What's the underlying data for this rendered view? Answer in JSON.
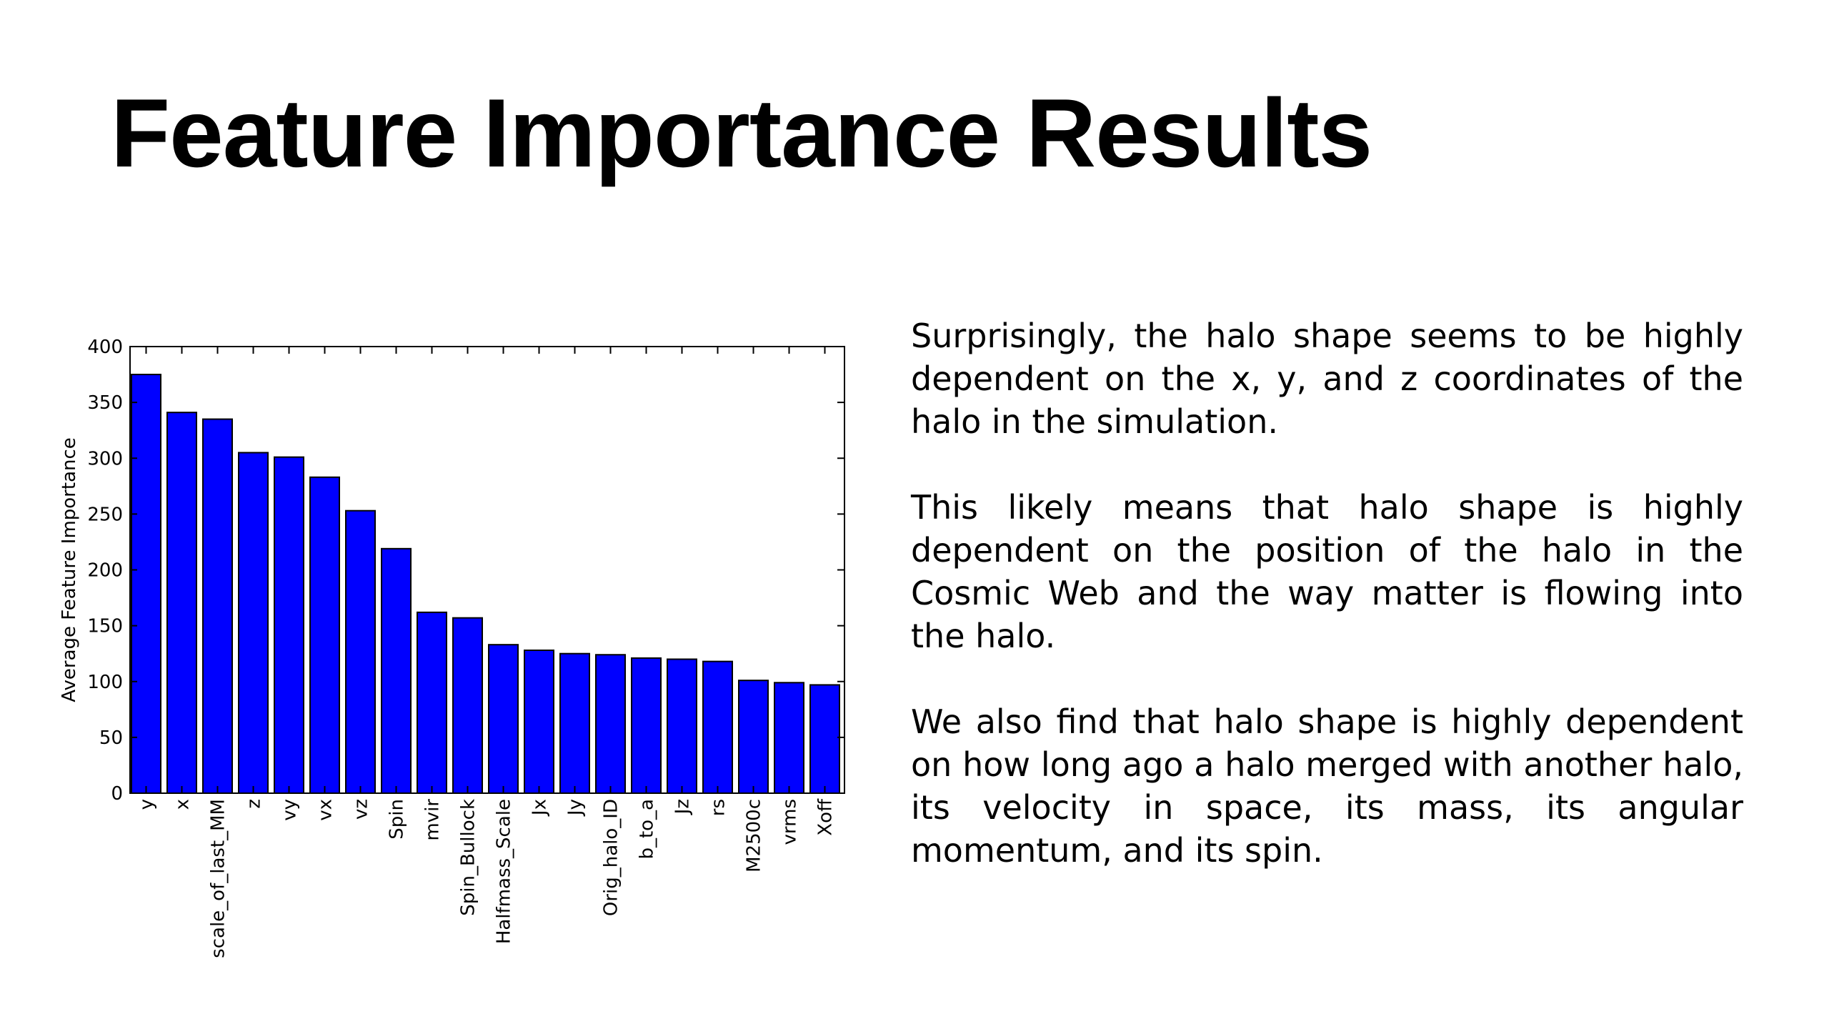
{
  "slide": {
    "title": "Feature Importance Results",
    "paragraphs": [
      "Surprisingly, the halo shape seems to be highly dependent on the x, y, and z coordinates of the halo in the simulation.",
      "This likely means that halo shape is highly dependent on the position of the halo in the Cosmic Web and the way matter is flowing into the halo.",
      "We also find that halo shape is highly dependent on how long ago a halo merged with another halo, its velocity in space, its mass, its angular momentum, and its spin."
    ]
  },
  "chart_data": {
    "type": "bar",
    "title": "",
    "xlabel": "",
    "ylabel": "Average Feature Importance",
    "ylim": [
      0,
      400
    ],
    "yticks": [
      0,
      50,
      100,
      150,
      200,
      250,
      300,
      350,
      400
    ],
    "categories": [
      "y",
      "x",
      "scale_of_last_MM",
      "z",
      "vy",
      "vx",
      "vz",
      "Spin",
      "mvir",
      "Spin_Bullock",
      "Halfmass_Scale",
      "Jx",
      "Jy",
      "Orig_halo_ID",
      "b_to_a",
      "Jz",
      "rs",
      "M2500c",
      "vrms",
      "Xoff"
    ],
    "values": [
      375,
      341,
      335,
      305,
      301,
      283,
      253,
      219,
      162,
      157,
      133,
      128,
      125,
      124,
      121,
      120,
      118,
      101,
      99,
      97
    ],
    "bar_color": "#0000ff",
    "grid": false,
    "legend": "none"
  }
}
